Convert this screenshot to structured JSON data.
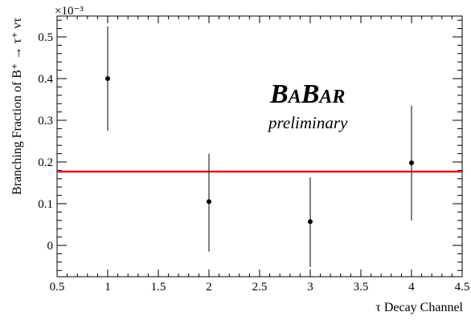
{
  "chart_data": {
    "type": "scatter",
    "xlabel": "τ Decay Channel",
    "ylabel": "Branching Fraction of B⁺ → τ⁺ ντ",
    "y_multiplier": "×10⁻³",
    "xlim": [
      0.5,
      4.5
    ],
    "ylim": [
      -0.075,
      0.55
    ],
    "x_ticks": [
      "0.5",
      "1",
      "1.5",
      "2",
      "2.5",
      "3",
      "3.5",
      "4",
      "4.5"
    ],
    "y_ticks": [
      "0",
      "0.1",
      "0.2",
      "0.3",
      "0.4",
      "0.5"
    ],
    "grid": false,
    "points": [
      {
        "x": 1,
        "y": 0.4,
        "err_low": 0.275,
        "err_high": 0.525
      },
      {
        "x": 2,
        "y": 0.105,
        "err_low": -0.015,
        "err_high": 0.22
      },
      {
        "x": 3,
        "y": 0.057,
        "err_low": -0.052,
        "err_high": 0.163
      },
      {
        "x": 4,
        "y": 0.198,
        "err_low": 0.06,
        "err_high": 0.335
      }
    ],
    "reference_line": {
      "y": 0.177,
      "color": "#e8141b"
    },
    "annotations": {
      "brand": "BABAR",
      "subtitle": "preliminary"
    }
  }
}
